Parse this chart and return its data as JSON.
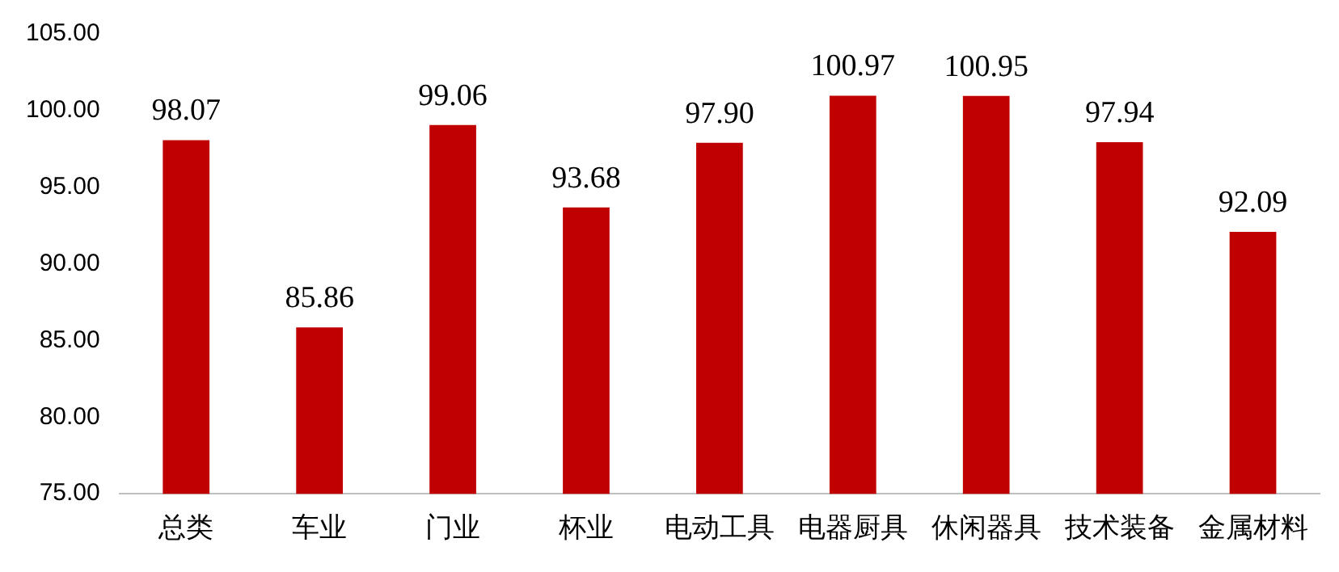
{
  "chart_data": {
    "type": "bar",
    "categories": [
      "总类",
      "车业",
      "门业",
      "杯业",
      "电动工具",
      "电器厨具",
      "休闲器具",
      "技术装备",
      "金属材料"
    ],
    "values": [
      98.07,
      85.86,
      99.06,
      93.68,
      97.9,
      100.97,
      100.95,
      97.94,
      92.09
    ],
    "value_labels": [
      "98.07",
      "85.86",
      "99.06",
      "93.68",
      "97.90",
      "100.97",
      "100.95",
      "97.94",
      "92.09"
    ],
    "color": "#c00000",
    "ylim": [
      75,
      105
    ],
    "yticks": [
      {
        "value": 75,
        "label": "75.00"
      },
      {
        "value": 80,
        "label": "80.00"
      },
      {
        "value": 85,
        "label": "85.00"
      },
      {
        "value": 90,
        "label": "90.00"
      },
      {
        "value": 95,
        "label": "95.00"
      },
      {
        "value": 100,
        "label": "100.00"
      },
      {
        "value": 105,
        "label": "105.00"
      }
    ],
    "grid": false,
    "legend": false
  }
}
